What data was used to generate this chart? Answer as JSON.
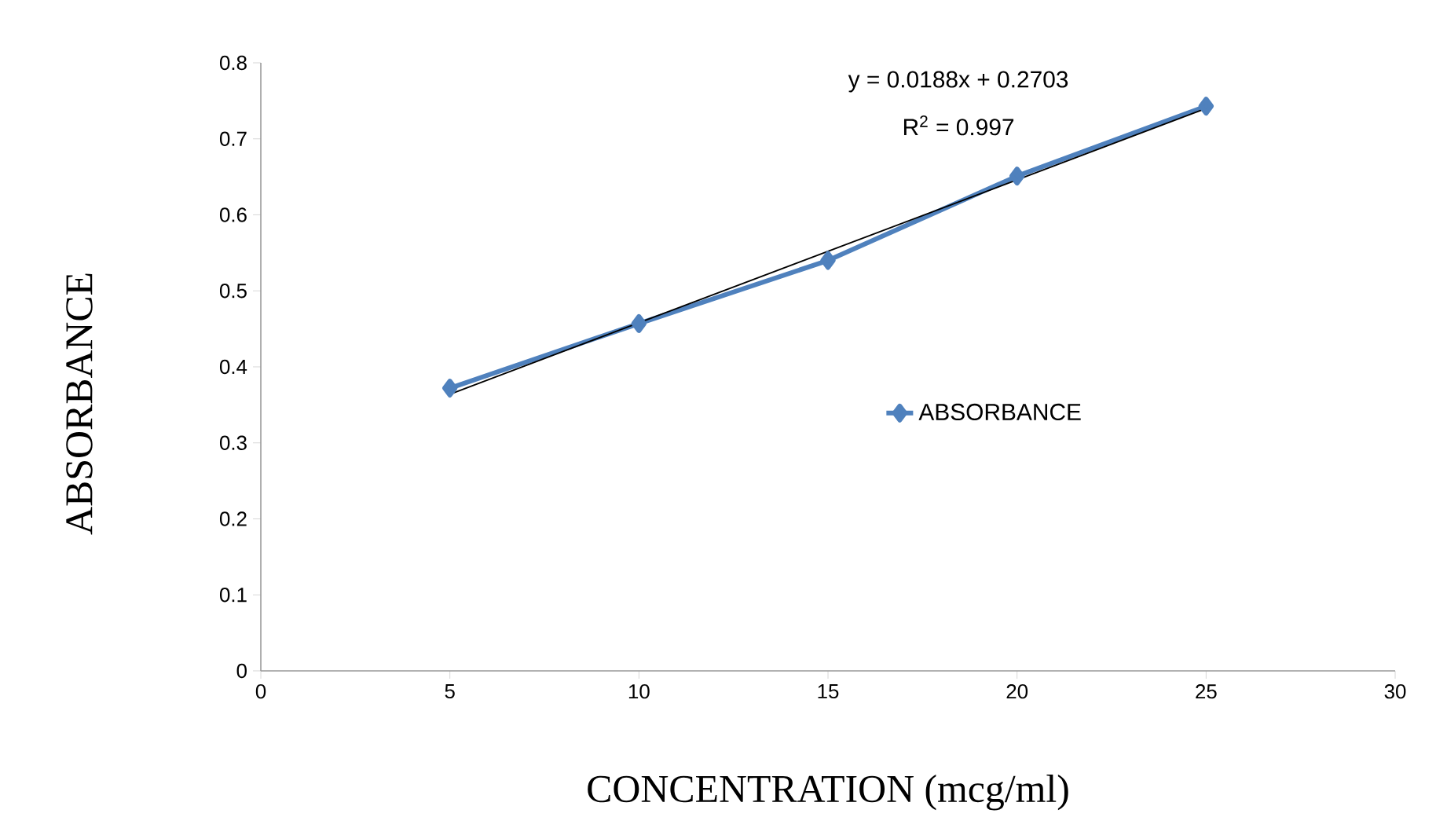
{
  "chart_data": {
    "type": "line",
    "xlabel": "CONCENTRATION (mcg/ml)",
    "ylabel": "ABSORBANCE",
    "x": [
      5,
      10,
      15,
      20,
      25
    ],
    "series": [
      {
        "name": "ABSORBANCE",
        "color": "#4f81bd",
        "values": [
          0.372,
          0.457,
          0.54,
          0.651,
          0.743
        ],
        "marker": "diamond"
      },
      {
        "type": "line",
        "color": "#000000",
        "x": [
          5,
          25
        ],
        "values": [
          0.364,
          0.74
        ],
        "marker": "none"
      }
    ],
    "annotations": [
      "y = 0.0188x + 0.2703",
      "R$^{2}$ = 0.997"
    ],
    "xlim": [
      0,
      30
    ],
    "xticks": [
      0,
      5,
      10,
      15,
      20,
      25,
      30
    ],
    "ylim": [
      0,
      0.8
    ],
    "yticks": [
      0,
      0.1,
      0.2,
      0.3,
      0.4,
      0.5,
      0.6,
      0.7,
      0.8
    ],
    "grid": false,
    "legend": "right",
    "line_style": "solid"
  }
}
